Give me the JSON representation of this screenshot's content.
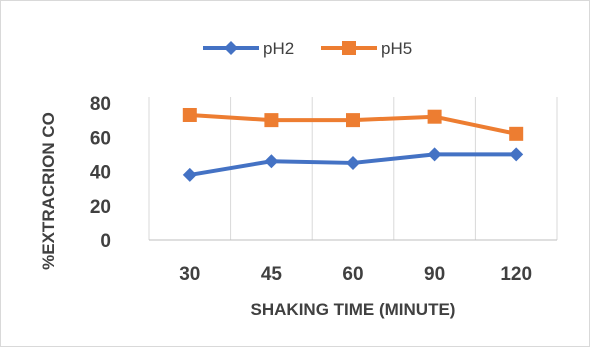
{
  "chart_data": {
    "type": "line",
    "categories": [
      "30",
      "45",
      "60",
      "90",
      "120"
    ],
    "series": [
      {
        "name": "pH2",
        "values": [
          38,
          46,
          45,
          50,
          50
        ],
        "color": "#4472C4",
        "marker": "diamond"
      },
      {
        "name": "pH5",
        "values": [
          73,
          70,
          70,
          72,
          62
        ],
        "color": "#ED7D31",
        "marker": "square"
      }
    ],
    "xlabel": "SHAKING TIME (MINUTE)",
    "ylabel": "%EXTRACRION CO",
    "ylim": [
      0,
      80
    ],
    "yticks": [
      "0",
      "20",
      "40",
      "60",
      "80"
    ],
    "grid": "vertical",
    "legend": "top"
  }
}
